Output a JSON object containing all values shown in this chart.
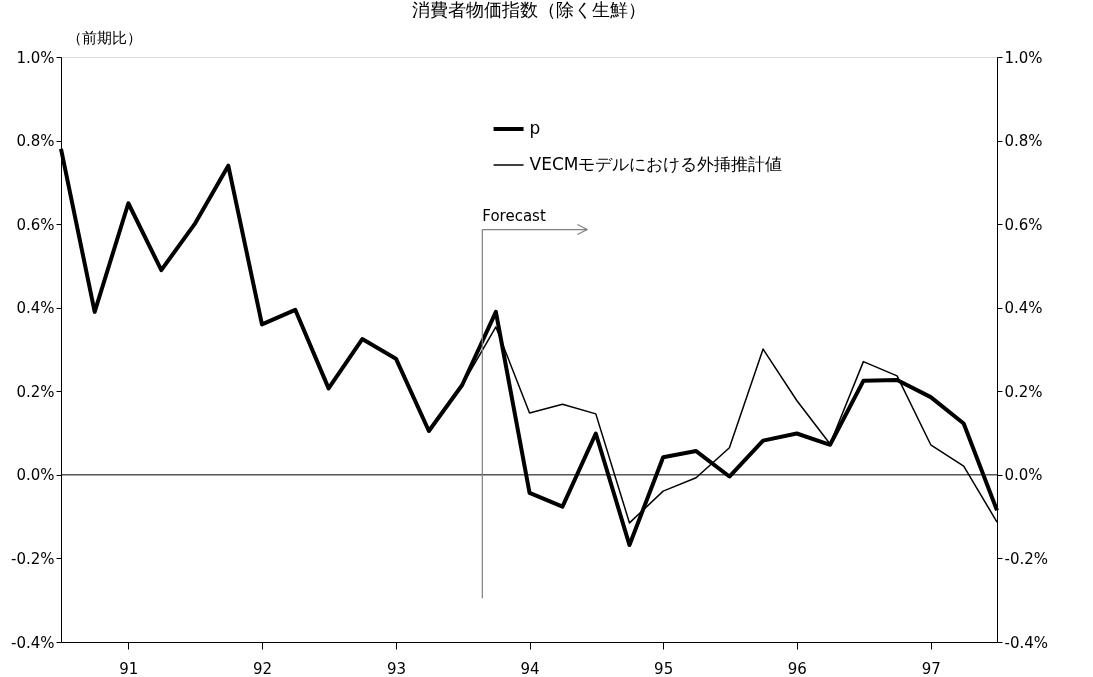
{
  "chart_data": {
    "type": "line",
    "title": "消費者物価指数（除く生鮮）",
    "ylabel": "（前期比）",
    "x": [
      "1990-07",
      "1990-10",
      "1991-01",
      "1991-04",
      "1991-07",
      "1991-10",
      "1992-01",
      "1992-04",
      "1992-07",
      "1992-10",
      "1993-01",
      "1993-04",
      "1993-07",
      "1993-10",
      "1994-01",
      "1994-04",
      "1994-07",
      "1994-10",
      "1995-01",
      "1995-04",
      "1995-07",
      "1995-10",
      "1996-01",
      "1996-04",
      "1996-07",
      "1996-10",
      "1997-01",
      "1997-04",
      "1997-07"
    ],
    "series": [
      {
        "name": "p",
        "color": "#000000",
        "values": [
          0.78,
          0.39,
          0.65,
          0.49,
          0.6,
          0.74,
          0.36,
          0.395,
          0.207,
          0.325,
          0.278,
          0.105,
          0.215,
          0.39,
          -0.043,
          -0.076,
          0.099,
          -0.168,
          0.042,
          0.057,
          -0.004,
          0.082,
          0.099,
          0.072,
          0.225,
          0.227,
          0.186,
          0.123,
          -0.085
        ]
      },
      {
        "name": "VECMモデルにおける外挿推計値",
        "color": "#000000",
        "x": [
          "1993-07",
          "1993-10",
          "1994-01",
          "1994-04",
          "1994-07",
          "1994-10",
          "1995-01",
          "1995-04",
          "1995-07",
          "1995-10",
          "1996-01",
          "1996-04",
          "1996-07",
          "1996-10",
          "1997-01",
          "1997-04",
          "1997-07"
        ],
        "values": [
          0.215,
          0.354,
          0.148,
          0.169,
          0.146,
          -0.115,
          -0.039,
          -0.007,
          0.065,
          0.301,
          0.178,
          0.074,
          0.271,
          0.237,
          0.072,
          0.021,
          -0.113
        ]
      }
    ],
    "xlim": [
      "1990-07",
      "1997-07"
    ],
    "xticks": [
      {
        "value": "1991-01",
        "label": "91"
      },
      {
        "value": "1992-01",
        "label": "92"
      },
      {
        "value": "1993-01",
        "label": "93"
      },
      {
        "value": "1994-01",
        "label": "94"
      },
      {
        "value": "1995-01",
        "label": "95"
      },
      {
        "value": "1996-01",
        "label": "96"
      },
      {
        "value": "1997-01",
        "label": "97"
      }
    ],
    "ylim": [
      -0.4,
      1.0
    ],
    "yticks": [
      {
        "value": -0.4,
        "label": "-0.4%"
      },
      {
        "value": -0.2,
        "label": "-0.2%"
      },
      {
        "value": 0,
        "label": "0.0%"
      },
      {
        "value": 0.2,
        "label": "0.2%"
      },
      {
        "value": 0.4,
        "label": "0.4%"
      },
      {
        "value": 0.6,
        "label": "0.6%"
      },
      {
        "value": 0.8,
        "label": "0.8%"
      },
      {
        "value": 1.0,
        "label": "1.0%"
      }
    ],
    "y2lim": [
      -0.4,
      1.0
    ],
    "y2ticks": [
      {
        "value": -0.4,
        "label": "-0.4%"
      },
      {
        "value": -0.2,
        "label": "-0.2%"
      },
      {
        "value": 0,
        "label": "0.0%"
      },
      {
        "value": 0.2,
        "label": "0.2%"
      },
      {
        "value": 0.4,
        "label": "0.4%"
      },
      {
        "value": 0.6,
        "label": "0.6%"
      },
      {
        "value": 0.8,
        "label": "0.8%"
      },
      {
        "value": 1.0,
        "label": "1.0%"
      }
    ],
    "ref_lines": [
      {
        "axis": "y",
        "value": 0,
        "label": null,
        "color": "#000000"
      },
      {
        "axis": "x",
        "value": "1993-08-25",
        "label": "Forecast",
        "color": "#808080"
      }
    ],
    "legend": "top",
    "grid": false,
    "marker": "none",
    "line_style": "solid"
  }
}
